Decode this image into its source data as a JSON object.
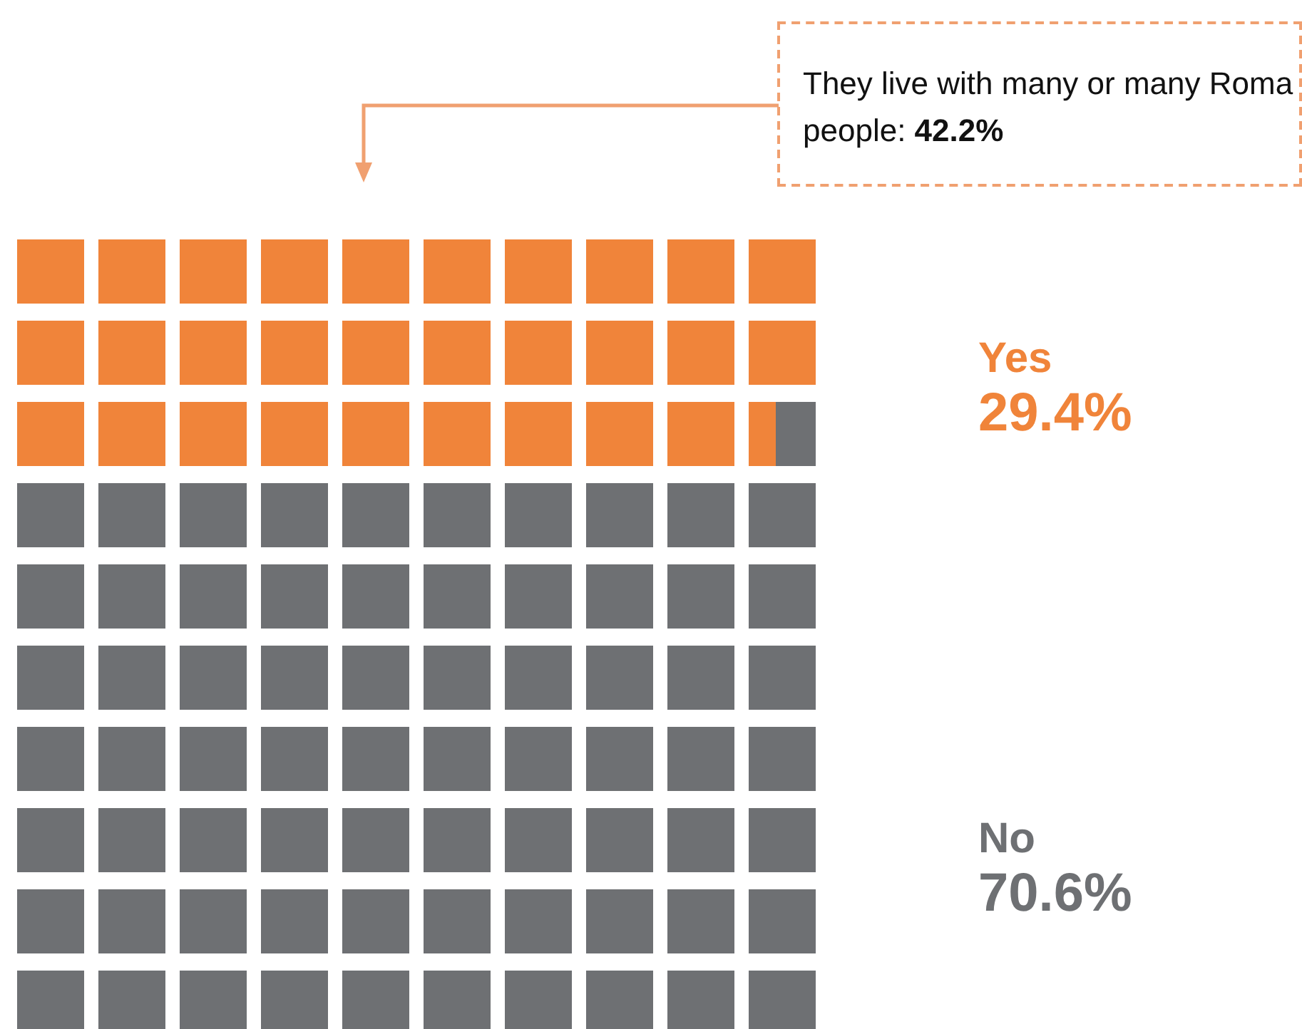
{
  "chart_data": {
    "type": "other",
    "categories": [
      "Yes",
      "No"
    ],
    "values": [
      29.4,
      70.6
    ],
    "value_labels": [
      "29.4%",
      "70.6%"
    ],
    "colors": [
      "#f0843a",
      "#6e7073"
    ],
    "annotations": [
      "They live with many or many Roma people: 42.2%"
    ]
  }
}
